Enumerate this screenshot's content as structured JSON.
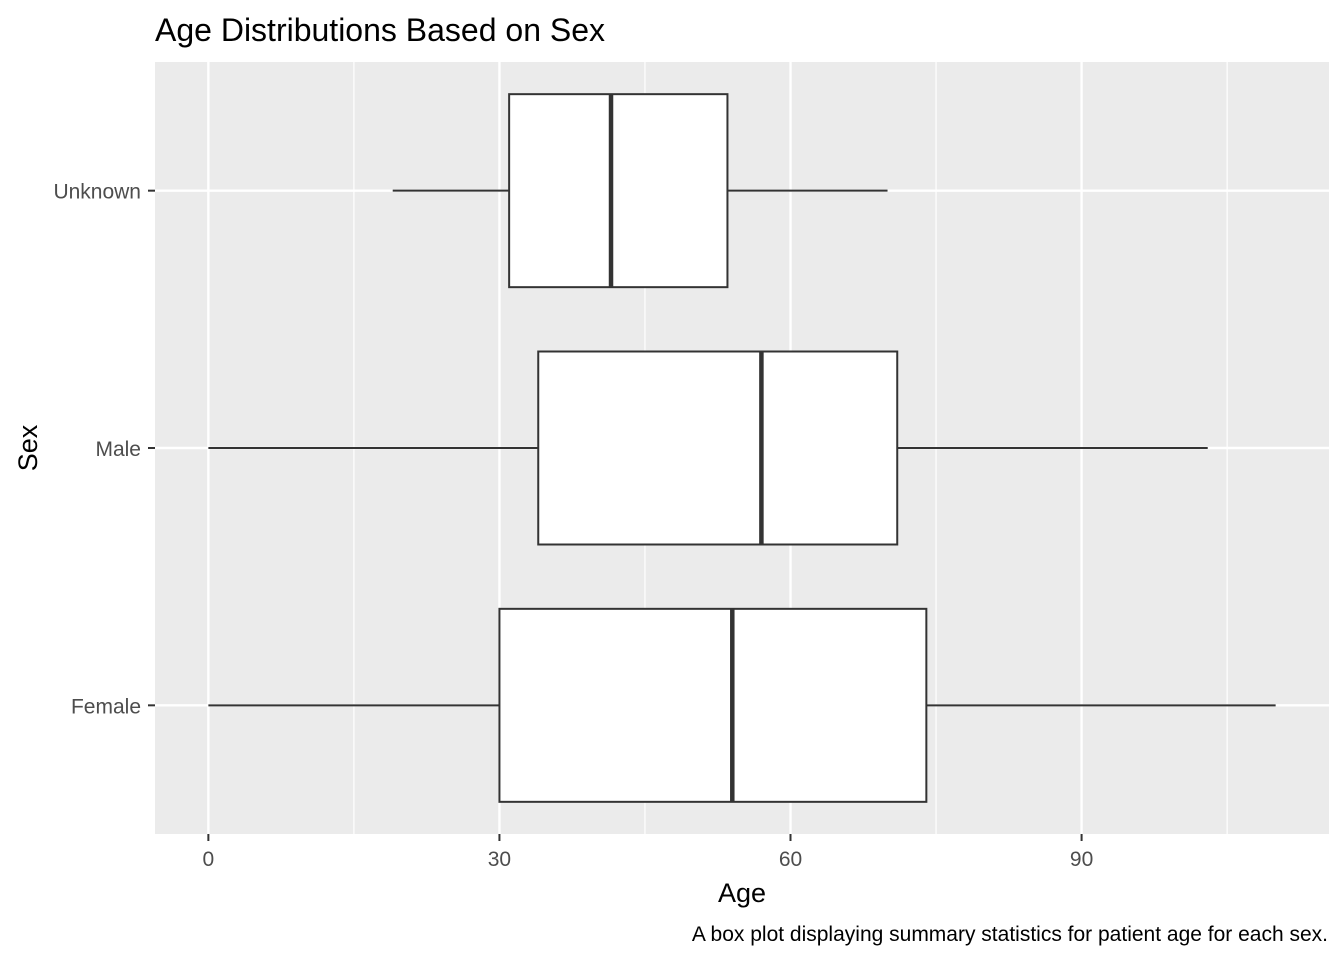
{
  "chart_data": {
    "type": "boxplot",
    "orientation": "horizontal",
    "title": "Age Distributions Based on Sex",
    "xlabel": "Age",
    "ylabel": "Sex",
    "caption": "A box plot displaying summary statistics for patient age for each sex.",
    "xlim": [
      -5.5,
      115.5
    ],
    "x_ticks": [
      0,
      30,
      60,
      90
    ],
    "x_minor_ticks": [
      15,
      45,
      75,
      105
    ],
    "categories": [
      "Female",
      "Male",
      "Unknown"
    ],
    "boxes": [
      {
        "category": "Female",
        "whisker_low": 0,
        "q1": 30,
        "median": 54,
        "q3": 74,
        "whisker_high": 110
      },
      {
        "category": "Male",
        "whisker_low": 0,
        "q1": 34,
        "median": 57,
        "q3": 71,
        "whisker_high": 103
      },
      {
        "category": "Unknown",
        "whisker_low": 19,
        "q1": 31,
        "median": 41.5,
        "q3": 53.5,
        "whisker_high": 70
      }
    ],
    "grid": true,
    "panel_background": "#ebebeb",
    "gridline_color": "#ffffff",
    "box_fill": "#ffffff",
    "box_stroke": "#333333"
  }
}
